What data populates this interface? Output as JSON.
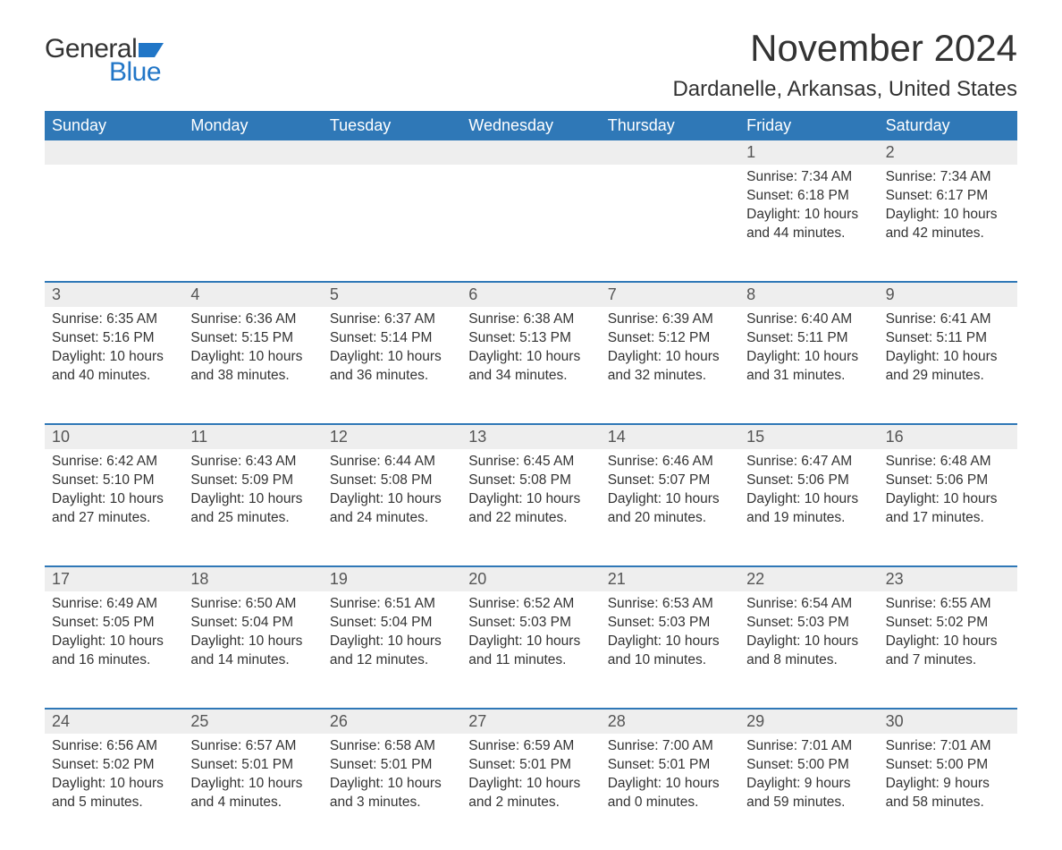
{
  "logo": {
    "text1": "General",
    "text2": "Blue",
    "flag_color": "#2176c7"
  },
  "title": "November 2024",
  "location": "Dardanelle, Arkansas, United States",
  "colors": {
    "header_bg": "#2f78b7",
    "header_text": "#ffffff",
    "daynum_bg": "#eeeeee",
    "border": "#2f78b7",
    "text": "#333333",
    "logo_blue": "#2176c7",
    "background": "#ffffff"
  },
  "day_headers": [
    "Sunday",
    "Monday",
    "Tuesday",
    "Wednesday",
    "Thursday",
    "Friday",
    "Saturday"
  ],
  "weeks": [
    [
      {
        "day": ""
      },
      {
        "day": ""
      },
      {
        "day": ""
      },
      {
        "day": ""
      },
      {
        "day": ""
      },
      {
        "day": "1",
        "sunrise": "Sunrise: 7:34 AM",
        "sunset": "Sunset: 6:18 PM",
        "daylight1": "Daylight: 10 hours",
        "daylight2": "and 44 minutes."
      },
      {
        "day": "2",
        "sunrise": "Sunrise: 7:34 AM",
        "sunset": "Sunset: 6:17 PM",
        "daylight1": "Daylight: 10 hours",
        "daylight2": "and 42 minutes."
      }
    ],
    [
      {
        "day": "3",
        "sunrise": "Sunrise: 6:35 AM",
        "sunset": "Sunset: 5:16 PM",
        "daylight1": "Daylight: 10 hours",
        "daylight2": "and 40 minutes."
      },
      {
        "day": "4",
        "sunrise": "Sunrise: 6:36 AM",
        "sunset": "Sunset: 5:15 PM",
        "daylight1": "Daylight: 10 hours",
        "daylight2": "and 38 minutes."
      },
      {
        "day": "5",
        "sunrise": "Sunrise: 6:37 AM",
        "sunset": "Sunset: 5:14 PM",
        "daylight1": "Daylight: 10 hours",
        "daylight2": "and 36 minutes."
      },
      {
        "day": "6",
        "sunrise": "Sunrise: 6:38 AM",
        "sunset": "Sunset: 5:13 PM",
        "daylight1": "Daylight: 10 hours",
        "daylight2": "and 34 minutes."
      },
      {
        "day": "7",
        "sunrise": "Sunrise: 6:39 AM",
        "sunset": "Sunset: 5:12 PM",
        "daylight1": "Daylight: 10 hours",
        "daylight2": "and 32 minutes."
      },
      {
        "day": "8",
        "sunrise": "Sunrise: 6:40 AM",
        "sunset": "Sunset: 5:11 PM",
        "daylight1": "Daylight: 10 hours",
        "daylight2": "and 31 minutes."
      },
      {
        "day": "9",
        "sunrise": "Sunrise: 6:41 AM",
        "sunset": "Sunset: 5:11 PM",
        "daylight1": "Daylight: 10 hours",
        "daylight2": "and 29 minutes."
      }
    ],
    [
      {
        "day": "10",
        "sunrise": "Sunrise: 6:42 AM",
        "sunset": "Sunset: 5:10 PM",
        "daylight1": "Daylight: 10 hours",
        "daylight2": "and 27 minutes."
      },
      {
        "day": "11",
        "sunrise": "Sunrise: 6:43 AM",
        "sunset": "Sunset: 5:09 PM",
        "daylight1": "Daylight: 10 hours",
        "daylight2": "and 25 minutes."
      },
      {
        "day": "12",
        "sunrise": "Sunrise: 6:44 AM",
        "sunset": "Sunset: 5:08 PM",
        "daylight1": "Daylight: 10 hours",
        "daylight2": "and 24 minutes."
      },
      {
        "day": "13",
        "sunrise": "Sunrise: 6:45 AM",
        "sunset": "Sunset: 5:08 PM",
        "daylight1": "Daylight: 10 hours",
        "daylight2": "and 22 minutes."
      },
      {
        "day": "14",
        "sunrise": "Sunrise: 6:46 AM",
        "sunset": "Sunset: 5:07 PM",
        "daylight1": "Daylight: 10 hours",
        "daylight2": "and 20 minutes."
      },
      {
        "day": "15",
        "sunrise": "Sunrise: 6:47 AM",
        "sunset": "Sunset: 5:06 PM",
        "daylight1": "Daylight: 10 hours",
        "daylight2": "and 19 minutes."
      },
      {
        "day": "16",
        "sunrise": "Sunrise: 6:48 AM",
        "sunset": "Sunset: 5:06 PM",
        "daylight1": "Daylight: 10 hours",
        "daylight2": "and 17 minutes."
      }
    ],
    [
      {
        "day": "17",
        "sunrise": "Sunrise: 6:49 AM",
        "sunset": "Sunset: 5:05 PM",
        "daylight1": "Daylight: 10 hours",
        "daylight2": "and 16 minutes."
      },
      {
        "day": "18",
        "sunrise": "Sunrise: 6:50 AM",
        "sunset": "Sunset: 5:04 PM",
        "daylight1": "Daylight: 10 hours",
        "daylight2": "and 14 minutes."
      },
      {
        "day": "19",
        "sunrise": "Sunrise: 6:51 AM",
        "sunset": "Sunset: 5:04 PM",
        "daylight1": "Daylight: 10 hours",
        "daylight2": "and 12 minutes."
      },
      {
        "day": "20",
        "sunrise": "Sunrise: 6:52 AM",
        "sunset": "Sunset: 5:03 PM",
        "daylight1": "Daylight: 10 hours",
        "daylight2": "and 11 minutes."
      },
      {
        "day": "21",
        "sunrise": "Sunrise: 6:53 AM",
        "sunset": "Sunset: 5:03 PM",
        "daylight1": "Daylight: 10 hours",
        "daylight2": "and 10 minutes."
      },
      {
        "day": "22",
        "sunrise": "Sunrise: 6:54 AM",
        "sunset": "Sunset: 5:03 PM",
        "daylight1": "Daylight: 10 hours",
        "daylight2": "and 8 minutes."
      },
      {
        "day": "23",
        "sunrise": "Sunrise: 6:55 AM",
        "sunset": "Sunset: 5:02 PM",
        "daylight1": "Daylight: 10 hours",
        "daylight2": "and 7 minutes."
      }
    ],
    [
      {
        "day": "24",
        "sunrise": "Sunrise: 6:56 AM",
        "sunset": "Sunset: 5:02 PM",
        "daylight1": "Daylight: 10 hours",
        "daylight2": "and 5 minutes."
      },
      {
        "day": "25",
        "sunrise": "Sunrise: 6:57 AM",
        "sunset": "Sunset: 5:01 PM",
        "daylight1": "Daylight: 10 hours",
        "daylight2": "and 4 minutes."
      },
      {
        "day": "26",
        "sunrise": "Sunrise: 6:58 AM",
        "sunset": "Sunset: 5:01 PM",
        "daylight1": "Daylight: 10 hours",
        "daylight2": "and 3 minutes."
      },
      {
        "day": "27",
        "sunrise": "Sunrise: 6:59 AM",
        "sunset": "Sunset: 5:01 PM",
        "daylight1": "Daylight: 10 hours",
        "daylight2": "and 2 minutes."
      },
      {
        "day": "28",
        "sunrise": "Sunrise: 7:00 AM",
        "sunset": "Sunset: 5:01 PM",
        "daylight1": "Daylight: 10 hours",
        "daylight2": "and 0 minutes."
      },
      {
        "day": "29",
        "sunrise": "Sunrise: 7:01 AM",
        "sunset": "Sunset: 5:00 PM",
        "daylight1": "Daylight: 9 hours",
        "daylight2": "and 59 minutes."
      },
      {
        "day": "30",
        "sunrise": "Sunrise: 7:01 AM",
        "sunset": "Sunset: 5:00 PM",
        "daylight1": "Daylight: 9 hours",
        "daylight2": "and 58 minutes."
      }
    ]
  ]
}
